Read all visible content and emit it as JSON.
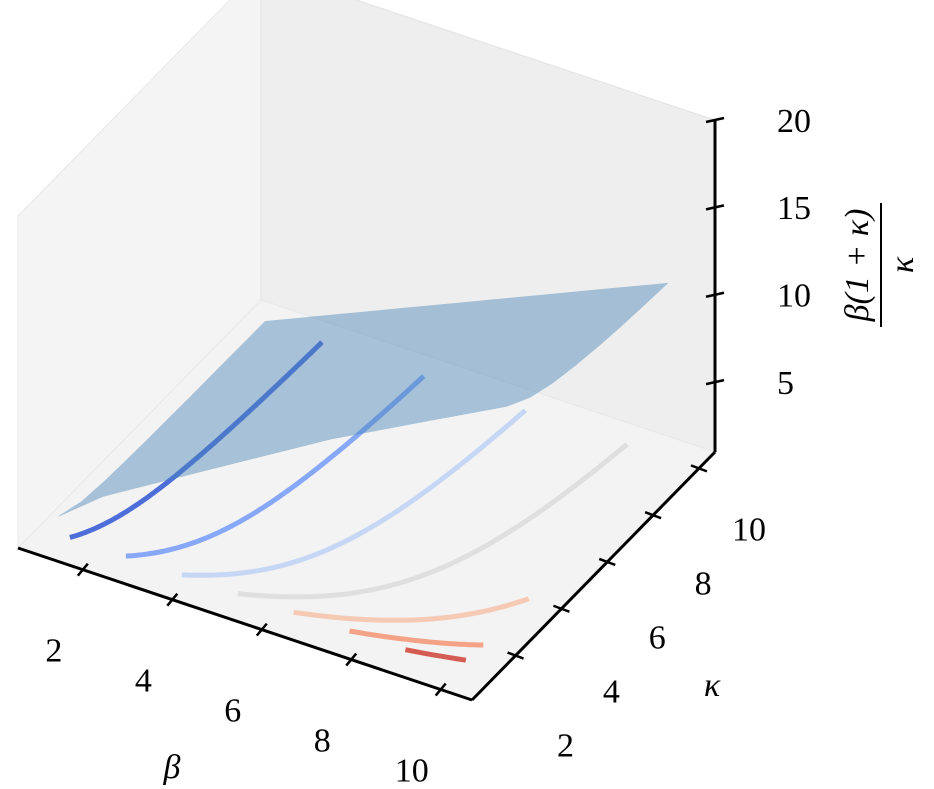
{
  "chart_data": {
    "type": "surface3d",
    "x_label": "β",
    "y_label": "κ",
    "z_label": {
      "numerator": "β(1 + κ)",
      "denominator": "κ"
    },
    "xlim": [
      0.55,
      10.7
    ],
    "ylim": [
      0.1,
      10.7
    ],
    "zlim": [
      1,
      20
    ],
    "xticks": [
      2,
      4,
      6,
      8,
      10
    ],
    "yticks": [
      2,
      4,
      6,
      8,
      10
    ],
    "zticks": [
      5,
      10,
      15,
      20
    ],
    "grid": false,
    "surface": {
      "color": "#4a86b8",
      "x": [
        1,
        2,
        3,
        4,
        5,
        6,
        7,
        8,
        9,
        10
      ],
      "y": [
        1,
        2,
        3,
        4,
        5,
        6,
        7,
        8,
        9,
        10
      ],
      "z": [
        [
          2,
          1.5,
          1.33,
          1.25,
          1.2,
          1.17,
          1.14,
          1.13,
          1.11,
          1.1
        ],
        [
          4,
          3,
          2.67,
          2.5,
          2.4,
          2.33,
          2.29,
          2.25,
          2.22,
          2.2
        ],
        [
          6,
          4.5,
          4,
          3.75,
          3.6,
          3.5,
          3.43,
          3.38,
          3.33,
          3.3
        ],
        [
          8,
          6,
          5.33,
          5,
          4.8,
          4.67,
          4.57,
          4.5,
          4.44,
          4.4
        ],
        [
          10,
          7.5,
          6.67,
          6.25,
          6,
          5.83,
          5.71,
          5.63,
          5.56,
          5.5
        ],
        [
          12,
          9,
          8,
          7.5,
          7.2,
          7,
          6.86,
          6.75,
          6.67,
          6.6
        ],
        [
          14,
          10.5,
          9.33,
          8.75,
          8.4,
          8.17,
          8,
          7.88,
          7.78,
          7.7
        ],
        [
          16,
          12,
          10.67,
          10,
          9.6,
          9.33,
          9.14,
          9,
          8.89,
          8.8
        ],
        [
          18,
          13.5,
          12,
          11.25,
          10.8,
          10.5,
          10.29,
          10.13,
          10,
          9.9
        ],
        [
          20,
          15,
          13.33,
          12.5,
          12,
          11.67,
          11.43,
          11.25,
          11.11,
          11
        ]
      ]
    },
    "contours": {
      "levels": [
        2.5,
        5,
        7.5,
        10,
        12.5,
        15,
        17.5
      ],
      "colors": [
        "#3b5fd6",
        "#7b9ff9",
        "#c0d4f5",
        "#dddddd",
        "#f5c4ac",
        "#f49a7b",
        "#d24b40"
      ]
    }
  }
}
